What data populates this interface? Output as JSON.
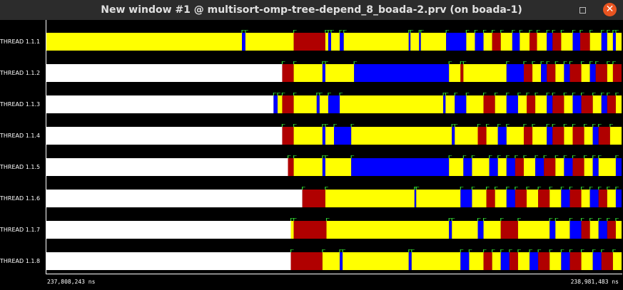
{
  "window": {
    "title": "New window #1 @ multisort-omp-tree-depend_8_boada-2.prv (on boada-1)",
    "close_glyph": "✕"
  },
  "icons": {
    "minimize": "maximize-icon",
    "close": "close-icon"
  },
  "colors": {
    "idle": "#ffffff",
    "running": "#ffff00",
    "sync": "#0000ff",
    "sched": "#b00000",
    "event": "#33dd33",
    "background": "#000000"
  },
  "axis": {
    "start": "237,808,243 ns",
    "end": "238,981,483 ns"
  },
  "threads": [
    {
      "label": "THREAD 1.1.1",
      "segments": [
        [
          "yellow",
          0.0,
          0.34
        ],
        [
          "blue",
          0.34,
          0.346
        ],
        [
          "yellow",
          0.346,
          0.43
        ],
        [
          "red",
          0.43,
          0.485
        ],
        [
          "yellow",
          0.485,
          0.49
        ],
        [
          "blue",
          0.49,
          0.495
        ],
        [
          "yellow",
          0.495,
          0.51
        ],
        [
          "blue",
          0.51,
          0.517
        ],
        [
          "yellow",
          0.517,
          0.63
        ],
        [
          "blue",
          0.63,
          0.633
        ],
        [
          "yellow",
          0.633,
          0.648
        ],
        [
          "blue",
          0.648,
          0.651
        ],
        [
          "yellow",
          0.651,
          0.695
        ],
        [
          "blue",
          0.695,
          0.73
        ],
        [
          "yellow",
          0.73,
          0.745
        ],
        [
          "blue",
          0.745,
          0.76
        ],
        [
          "yellow",
          0.76,
          0.775
        ],
        [
          "red",
          0.775,
          0.79
        ],
        [
          "yellow",
          0.79,
          0.81
        ],
        [
          "blue",
          0.81,
          0.823
        ],
        [
          "yellow",
          0.823,
          0.84
        ],
        [
          "red",
          0.84,
          0.853
        ],
        [
          "yellow",
          0.853,
          0.87
        ],
        [
          "blue",
          0.87,
          0.88
        ],
        [
          "red",
          0.88,
          0.895
        ],
        [
          "yellow",
          0.895,
          0.915
        ],
        [
          "blue",
          0.915,
          0.928
        ],
        [
          "red",
          0.928,
          0.945
        ],
        [
          "yellow",
          0.945,
          0.965
        ],
        [
          "blue",
          0.965,
          0.975
        ],
        [
          "yellow",
          0.975,
          0.985
        ],
        [
          "blue",
          0.985,
          0.99
        ],
        [
          "yellow",
          0.99,
          1.0
        ]
      ]
    },
    {
      "label": "THREAD 1.1.2",
      "segments": [
        [
          "white",
          0.0,
          0.41
        ],
        [
          "red",
          0.41,
          0.43
        ],
        [
          "yellow",
          0.43,
          0.48
        ],
        [
          "blue",
          0.48,
          0.485
        ],
        [
          "yellow",
          0.485,
          0.535
        ],
        [
          "blue",
          0.535,
          0.7
        ],
        [
          "yellow",
          0.7,
          0.72
        ],
        [
          "red",
          0.72,
          0.725
        ],
        [
          "yellow",
          0.725,
          0.8
        ],
        [
          "blue",
          0.8,
          0.83
        ],
        [
          "red",
          0.83,
          0.845
        ],
        [
          "yellow",
          0.845,
          0.86
        ],
        [
          "blue",
          0.86,
          0.87
        ],
        [
          "red",
          0.87,
          0.885
        ],
        [
          "yellow",
          0.885,
          0.9
        ],
        [
          "blue",
          0.9,
          0.91
        ],
        [
          "red",
          0.91,
          0.93
        ],
        [
          "yellow",
          0.93,
          0.945
        ],
        [
          "blue",
          0.945,
          0.955
        ],
        [
          "red",
          0.955,
          0.975
        ],
        [
          "yellow",
          0.975,
          0.985
        ],
        [
          "red",
          0.985,
          1.0
        ]
      ]
    },
    {
      "label": "THREAD 1.1.3",
      "segments": [
        [
          "white",
          0.0,
          0.395
        ],
        [
          "blue",
          0.395,
          0.402
        ],
        [
          "yellow",
          0.402,
          0.41
        ],
        [
          "red",
          0.41,
          0.43
        ],
        [
          "yellow",
          0.43,
          0.47
        ],
        [
          "blue",
          0.47,
          0.475
        ],
        [
          "yellow",
          0.475,
          0.49
        ],
        [
          "blue",
          0.49,
          0.51
        ],
        [
          "yellow",
          0.51,
          0.69
        ],
        [
          "blue",
          0.69,
          0.694
        ],
        [
          "yellow",
          0.694,
          0.71
        ],
        [
          "blue",
          0.71,
          0.73
        ],
        [
          "yellow",
          0.73,
          0.76
        ],
        [
          "red",
          0.76,
          0.78
        ],
        [
          "yellow",
          0.78,
          0.8
        ],
        [
          "blue",
          0.8,
          0.82
        ],
        [
          "yellow",
          0.82,
          0.835
        ],
        [
          "red",
          0.835,
          0.85
        ],
        [
          "yellow",
          0.85,
          0.87
        ],
        [
          "blue",
          0.87,
          0.88
        ],
        [
          "red",
          0.88,
          0.9
        ],
        [
          "yellow",
          0.9,
          0.915
        ],
        [
          "blue",
          0.915,
          0.93
        ],
        [
          "red",
          0.93,
          0.95
        ],
        [
          "yellow",
          0.95,
          0.965
        ],
        [
          "blue",
          0.965,
          0.975
        ],
        [
          "red",
          0.975,
          0.99
        ],
        [
          "yellow",
          0.99,
          1.0
        ]
      ]
    },
    {
      "label": "THREAD 1.1.4",
      "segments": [
        [
          "white",
          0.0,
          0.41
        ],
        [
          "red",
          0.41,
          0.43
        ],
        [
          "yellow",
          0.43,
          0.48
        ],
        [
          "blue",
          0.48,
          0.485
        ],
        [
          "yellow",
          0.485,
          0.5
        ],
        [
          "blue",
          0.5,
          0.53
        ],
        [
          "yellow",
          0.53,
          0.705
        ],
        [
          "blue",
          0.705,
          0.71
        ],
        [
          "yellow",
          0.71,
          0.75
        ],
        [
          "red",
          0.75,
          0.765
        ],
        [
          "yellow",
          0.765,
          0.785
        ],
        [
          "blue",
          0.785,
          0.8
        ],
        [
          "yellow",
          0.8,
          0.83
        ],
        [
          "red",
          0.83,
          0.845
        ],
        [
          "yellow",
          0.845,
          0.87
        ],
        [
          "blue",
          0.87,
          0.88
        ],
        [
          "red",
          0.88,
          0.9
        ],
        [
          "yellow",
          0.9,
          0.915
        ],
        [
          "red",
          0.915,
          0.935
        ],
        [
          "yellow",
          0.935,
          0.95
        ],
        [
          "blue",
          0.95,
          0.96
        ],
        [
          "red",
          0.96,
          0.98
        ],
        [
          "yellow",
          0.98,
          1.0
        ]
      ]
    },
    {
      "label": "THREAD 1.1.5",
      "segments": [
        [
          "white",
          0.0,
          0.42
        ],
        [
          "red",
          0.42,
          0.43
        ],
        [
          "yellow",
          0.43,
          0.48
        ],
        [
          "blue",
          0.48,
          0.485
        ],
        [
          "yellow",
          0.485,
          0.53
        ],
        [
          "blue",
          0.53,
          0.7
        ],
        [
          "yellow",
          0.7,
          0.725
        ],
        [
          "blue",
          0.725,
          0.74
        ],
        [
          "yellow",
          0.74,
          0.77
        ],
        [
          "blue",
          0.77,
          0.785
        ],
        [
          "yellow",
          0.785,
          0.8
        ],
        [
          "blue",
          0.8,
          0.815
        ],
        [
          "red",
          0.815,
          0.83
        ],
        [
          "yellow",
          0.83,
          0.85
        ],
        [
          "blue",
          0.85,
          0.865
        ],
        [
          "red",
          0.865,
          0.885
        ],
        [
          "yellow",
          0.885,
          0.9
        ],
        [
          "blue",
          0.9,
          0.915
        ],
        [
          "red",
          0.915,
          0.935
        ],
        [
          "yellow",
          0.935,
          0.95
        ],
        [
          "blue",
          0.95,
          0.96
        ],
        [
          "yellow",
          0.96,
          0.99
        ],
        [
          "blue",
          0.99,
          1.0
        ]
      ]
    },
    {
      "label": "THREAD 1.1.6",
      "segments": [
        [
          "white",
          0.0,
          0.445
        ],
        [
          "red",
          0.445,
          0.485
        ],
        [
          "yellow",
          0.485,
          0.64
        ],
        [
          "blue",
          0.64,
          0.643
        ],
        [
          "yellow",
          0.643,
          0.72
        ],
        [
          "blue",
          0.72,
          0.74
        ],
        [
          "yellow",
          0.74,
          0.765
        ],
        [
          "red",
          0.765,
          0.78
        ],
        [
          "yellow",
          0.78,
          0.8
        ],
        [
          "blue",
          0.8,
          0.815
        ],
        [
          "red",
          0.815,
          0.835
        ],
        [
          "yellow",
          0.835,
          0.855
        ],
        [
          "red",
          0.855,
          0.875
        ],
        [
          "yellow",
          0.875,
          0.895
        ],
        [
          "blue",
          0.895,
          0.91
        ],
        [
          "red",
          0.91,
          0.93
        ],
        [
          "yellow",
          0.93,
          0.945
        ],
        [
          "blue",
          0.945,
          0.96
        ],
        [
          "red",
          0.96,
          0.975
        ],
        [
          "yellow",
          0.975,
          0.99
        ],
        [
          "blue",
          0.99,
          1.0
        ]
      ]
    },
    {
      "label": "THREAD 1.1.7",
      "segments": [
        [
          "white",
          0.0,
          0.425
        ],
        [
          "yellow",
          0.425,
          0.43
        ],
        [
          "red",
          0.43,
          0.487
        ],
        [
          "yellow",
          0.487,
          0.7
        ],
        [
          "blue",
          0.7,
          0.705
        ],
        [
          "yellow",
          0.705,
          0.75
        ],
        [
          "blue",
          0.75,
          0.76
        ],
        [
          "yellow",
          0.76,
          0.79
        ],
        [
          "red",
          0.79,
          0.82
        ],
        [
          "yellow",
          0.82,
          0.875
        ],
        [
          "blue",
          0.875,
          0.885
        ],
        [
          "yellow",
          0.885,
          0.91
        ],
        [
          "blue",
          0.91,
          0.93
        ],
        [
          "red",
          0.93,
          0.945
        ],
        [
          "yellow",
          0.945,
          0.96
        ],
        [
          "blue",
          0.96,
          0.975
        ],
        [
          "red",
          0.975,
          0.99
        ],
        [
          "yellow",
          0.99,
          1.0
        ]
      ]
    },
    {
      "label": "THREAD 1.1.8",
      "segments": [
        [
          "white",
          0.0,
          0.425
        ],
        [
          "red",
          0.425,
          0.48
        ],
        [
          "yellow",
          0.48,
          0.51
        ],
        [
          "blue",
          0.51,
          0.515
        ],
        [
          "yellow",
          0.515,
          0.63
        ],
        [
          "blue",
          0.63,
          0.635
        ],
        [
          "yellow",
          0.635,
          0.72
        ],
        [
          "blue",
          0.72,
          0.735
        ],
        [
          "yellow",
          0.735,
          0.76
        ],
        [
          "red",
          0.76,
          0.775
        ],
        [
          "yellow",
          0.775,
          0.79
        ],
        [
          "blue",
          0.79,
          0.805
        ],
        [
          "red",
          0.805,
          0.82
        ],
        [
          "yellow",
          0.82,
          0.84
        ],
        [
          "blue",
          0.84,
          0.855
        ],
        [
          "red",
          0.855,
          0.875
        ],
        [
          "yellow",
          0.875,
          0.895
        ],
        [
          "blue",
          0.895,
          0.91
        ],
        [
          "red",
          0.91,
          0.93
        ],
        [
          "yellow",
          0.93,
          0.95
        ],
        [
          "blue",
          0.95,
          0.965
        ],
        [
          "red",
          0.965,
          0.985
        ],
        [
          "yellow",
          0.985,
          1.0
        ]
      ]
    }
  ]
}
